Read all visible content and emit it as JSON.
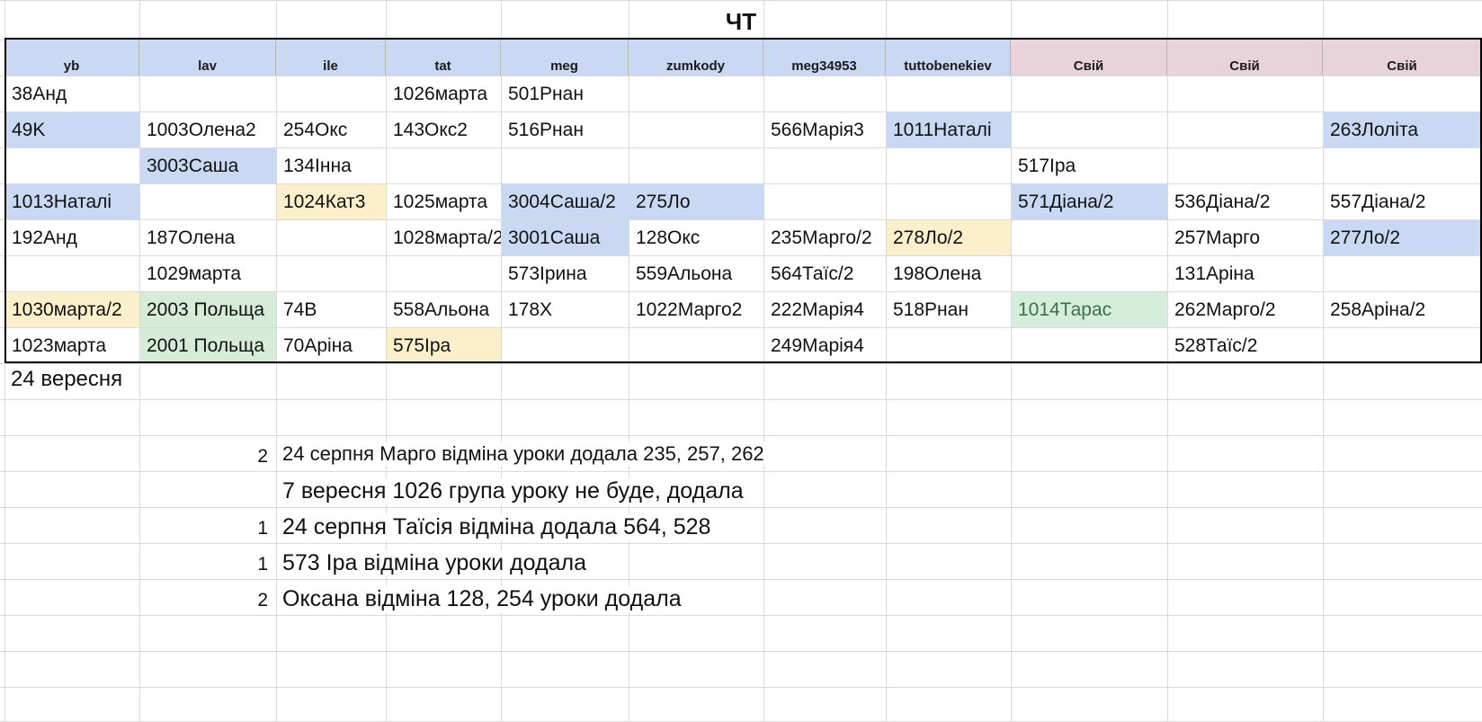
{
  "sheet": {
    "day_title": "ЧТ",
    "headers": [
      {
        "label": "yb",
        "color": "#c9d8f3"
      },
      {
        "label": "lav",
        "color": "#c9d8f3"
      },
      {
        "label": "ile",
        "color": "#c9d8f3"
      },
      {
        "label": "tat",
        "color": "#c9d8f3"
      },
      {
        "label": "meg",
        "color": "#c9d8f3"
      },
      {
        "label": "zumkody",
        "color": "#c9d8f3"
      },
      {
        "label": "meg34953",
        "color": "#c9d8f3"
      },
      {
        "label": "tuttobenekiev",
        "color": "#c9d8f3"
      },
      {
        "label": "Свій",
        "color": "#e8d3da"
      },
      {
        "label": "Свій",
        "color": "#e8d3da"
      },
      {
        "label": "Свій",
        "color": "#e8d3da"
      }
    ],
    "rows": [
      [
        {
          "v": "38Анд",
          "c": ""
        },
        {
          "v": "",
          "c": ""
        },
        {
          "v": "",
          "c": ""
        },
        {
          "v": "1026марта",
          "c": ""
        },
        {
          "v": "501Рнан",
          "c": ""
        },
        {
          "v": "",
          "c": ""
        },
        {
          "v": "",
          "c": ""
        },
        {
          "v": "",
          "c": ""
        },
        {
          "v": "",
          "c": ""
        },
        {
          "v": "",
          "c": ""
        },
        {
          "v": "",
          "c": ""
        }
      ],
      [
        {
          "v": "49K",
          "c": "blue"
        },
        {
          "v": "1003Олена2",
          "c": ""
        },
        {
          "v": "254Окс",
          "c": ""
        },
        {
          "v": "143Окс2",
          "c": ""
        },
        {
          "v": "516Рнан",
          "c": ""
        },
        {
          "v": "",
          "c": ""
        },
        {
          "v": "566Марія3",
          "c": ""
        },
        {
          "v": "1011Наталі",
          "c": "blue"
        },
        {
          "v": "",
          "c": ""
        },
        {
          "v": "",
          "c": ""
        },
        {
          "v": "263Лоліта",
          "c": "blue"
        }
      ],
      [
        {
          "v": "",
          "c": ""
        },
        {
          "v": "3003Саша",
          "c": "blue"
        },
        {
          "v": "134Інна",
          "c": ""
        },
        {
          "v": "",
          "c": ""
        },
        {
          "v": "",
          "c": ""
        },
        {
          "v": "",
          "c": ""
        },
        {
          "v": "",
          "c": ""
        },
        {
          "v": "",
          "c": ""
        },
        {
          "v": "517Іра",
          "c": ""
        },
        {
          "v": "",
          "c": ""
        },
        {
          "v": "",
          "c": ""
        }
      ],
      [
        {
          "v": "1013Наталі",
          "c": "blue"
        },
        {
          "v": "",
          "c": ""
        },
        {
          "v": "1024Кат3",
          "c": "yellow"
        },
        {
          "v": "1025марта",
          "c": ""
        },
        {
          "v": "3004Саша/2",
          "c": "blue"
        },
        {
          "v": "275Ло",
          "c": "blue"
        },
        {
          "v": "",
          "c": ""
        },
        {
          "v": "",
          "c": ""
        },
        {
          "v": "571Діана/2",
          "c": "blue"
        },
        {
          "v": "536Діана/2",
          "c": ""
        },
        {
          "v": "557Діана/2",
          "c": ""
        }
      ],
      [
        {
          "v": "192Анд",
          "c": ""
        },
        {
          "v": "187Олена",
          "c": ""
        },
        {
          "v": "",
          "c": ""
        },
        {
          "v": "1028марта/2",
          "c": ""
        },
        {
          "v": "3001Саша",
          "c": "blue"
        },
        {
          "v": "128Окс",
          "c": ""
        },
        {
          "v": "235Марго/2",
          "c": ""
        },
        {
          "v": "278Ло/2",
          "c": "yellow"
        },
        {
          "v": "",
          "c": ""
        },
        {
          "v": "257Марго",
          "c": ""
        },
        {
          "v": "277Ло/2",
          "c": "blue"
        }
      ],
      [
        {
          "v": "",
          "c": ""
        },
        {
          "v": "1029марта",
          "c": ""
        },
        {
          "v": "",
          "c": ""
        },
        {
          "v": "",
          "c": ""
        },
        {
          "v": "573Ірина",
          "c": ""
        },
        {
          "v": "559Альона",
          "c": ""
        },
        {
          "v": "564Таїс/2",
          "c": ""
        },
        {
          "v": "198Олена",
          "c": ""
        },
        {
          "v": "",
          "c": ""
        },
        {
          "v": "131Аріна",
          "c": ""
        },
        {
          "v": "",
          "c": ""
        }
      ],
      [
        {
          "v": "1030марта/2",
          "c": "yellow"
        },
        {
          "v": "2003 Польща",
          "c": "green"
        },
        {
          "v": "74В",
          "c": ""
        },
        {
          "v": "558Альона",
          "c": ""
        },
        {
          "v": "178Х",
          "c": ""
        },
        {
          "v": "1022Марго2",
          "c": ""
        },
        {
          "v": "222Марія4",
          "c": ""
        },
        {
          "v": "518Рнан",
          "c": ""
        },
        {
          "v": "1014Тарас",
          "c": "brightgreen"
        },
        {
          "v": "262Марго/2",
          "c": ""
        },
        {
          "v": "258Аріна/2",
          "c": ""
        }
      ],
      [
        {
          "v": "1023марта",
          "c": ""
        },
        {
          "v": "2001 Польща",
          "c": "green"
        },
        {
          "v": "70Аріна",
          "c": ""
        },
        {
          "v": "575Іра",
          "c": "yellow"
        },
        {
          "v": "",
          "c": ""
        },
        {
          "v": "",
          "c": ""
        },
        {
          "v": "249Марія4",
          "c": ""
        },
        {
          "v": "",
          "c": ""
        },
        {
          "v": "",
          "c": ""
        },
        {
          "v": "528Таїс/2",
          "c": ""
        },
        {
          "v": "",
          "c": ""
        }
      ]
    ],
    "date_label": "24 вересня",
    "notes": [
      {
        "num": "2",
        "text": "24 серпня Марго відміна уроки  додала 235, 257, 262"
      },
      {
        "num": "",
        "text": "7 вересня 1026 група уроку не буде, додала"
      },
      {
        "num": "1",
        "text": "24 серпня Таїсія відміна додала 564, 528"
      },
      {
        "num": "1",
        "text": "573 Іра відміна уроки додала"
      },
      {
        "num": "2",
        "text": "Оксана відміна 128, 254  уроки додала"
      }
    ]
  }
}
